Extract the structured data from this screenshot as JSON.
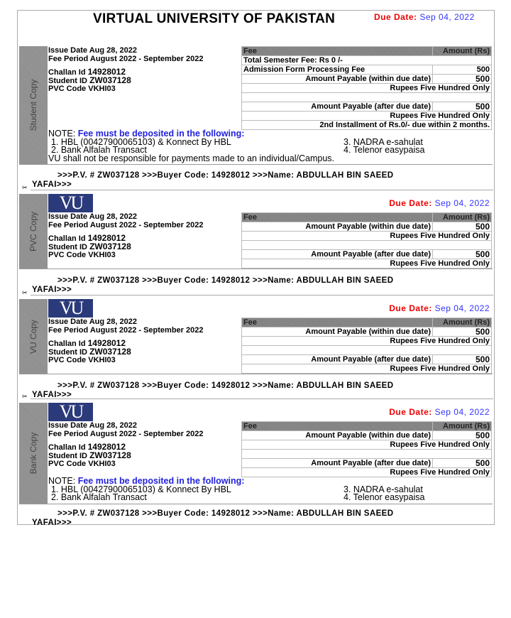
{
  "title": "VIRTUAL UNIVERSITY OF PAKISTAN",
  "due_label": "Due Date:",
  "due_value": "Sep 04, 2022",
  "logo_text": "VU",
  "info": {
    "issue_label": "Issue Date",
    "issue_value": "Aug 28, 2022",
    "period_label": "Fee Period",
    "period_value": "August 2022 - September 2022",
    "challan_label": "Challan Id",
    "challan_value": "14928012",
    "student_label": "Student ID",
    "student_value": "ZW037128",
    "pvc_label": "PVC Code",
    "pvc_value": "VKHI03"
  },
  "table_header": {
    "fee": "Fee",
    "amount": "Amount (Rs)"
  },
  "notes": {
    "prefix": "NOTE:",
    "heading": "Fee must be deposited in the following:",
    "items": [
      "1.  HBL (00427900065103) & Konnect By HBL",
      "3.  NADRA e-sahulat",
      "2.  Bank Alfalah Transact",
      "4.  Telenor easypaisa"
    ],
    "disclaimer": "VU shall not be responsible for payments made to an individual/Campus."
  },
  "footer": {
    "line1": ">>>P.V. # ZW037128 >>>Buyer Code: 14928012 >>>Name: ABDULLAH BIN SAEED",
    "line2": "YAFAI>>>"
  },
  "scissor_icon": "✂",
  "colors": {
    "due_label": "#ee0000",
    "due_value": "#3333ff",
    "logo_bg": "#2b3a7a",
    "header_bg": "#888888"
  },
  "copies": [
    {
      "label": "Student Copy",
      "logo": false,
      "notes": true,
      "disclaimer": true,
      "rows": [
        {
          "type": "full",
          "text": "Total Semester Fee: Rs 0 /-",
          "align": "left"
        },
        {
          "type": "pair",
          "text": "Admission Form Processing Fee",
          "amount": "500",
          "align": "left",
          "plain": true
        },
        {
          "type": "pair",
          "text": "Amount Payable (within due date)",
          "amount": "500"
        },
        {
          "type": "full",
          "text": "Rupees Five Hundred Only"
        },
        {
          "type": "full",
          "text": ""
        },
        {
          "type": "pair",
          "text": "Amount Payable (after due date)",
          "amount": "500"
        },
        {
          "type": "full",
          "text": "Rupees Five Hundred Only"
        },
        {
          "type": "full",
          "text": "2nd Installment of Rs.0/- due within 2 months."
        }
      ]
    },
    {
      "label": "PVC Copy",
      "logo": true,
      "notes": false,
      "rows": [
        {
          "type": "pair",
          "text": "Amount Payable (within due date)",
          "amount": "500"
        },
        {
          "type": "full",
          "text": "Rupees Five Hundred Only"
        },
        {
          "type": "full",
          "text": ""
        },
        {
          "type": "pair",
          "text": "Amount Payable (after due date)",
          "amount": "500"
        },
        {
          "type": "full",
          "text": "Rupees Five Hundred Only"
        }
      ]
    },
    {
      "label": "VU Copy",
      "logo": true,
      "notes": false,
      "rows": [
        {
          "type": "pair",
          "text": "Amount Payable (within due date)",
          "amount": "500"
        },
        {
          "type": "full",
          "text": "Rupees Five Hundred Only"
        },
        {
          "type": "full",
          "text": ""
        },
        {
          "type": "pair",
          "text": "Amount Payable (after due date)",
          "amount": "500"
        },
        {
          "type": "full",
          "text": "Rupees Five Hundred Only"
        }
      ]
    },
    {
      "label": "Bank Copy",
      "logo": true,
      "notes": true,
      "disclaimer": false,
      "rows": [
        {
          "type": "pair",
          "text": "Amount Payable (within due date)",
          "amount": "500"
        },
        {
          "type": "full",
          "text": "Rupees Five Hundred Only"
        },
        {
          "type": "full",
          "text": ""
        },
        {
          "type": "pair",
          "text": "Amount Payable (after due date)",
          "amount": "500"
        },
        {
          "type": "full",
          "text": "Rupees Five Hundred Only"
        }
      ]
    }
  ]
}
